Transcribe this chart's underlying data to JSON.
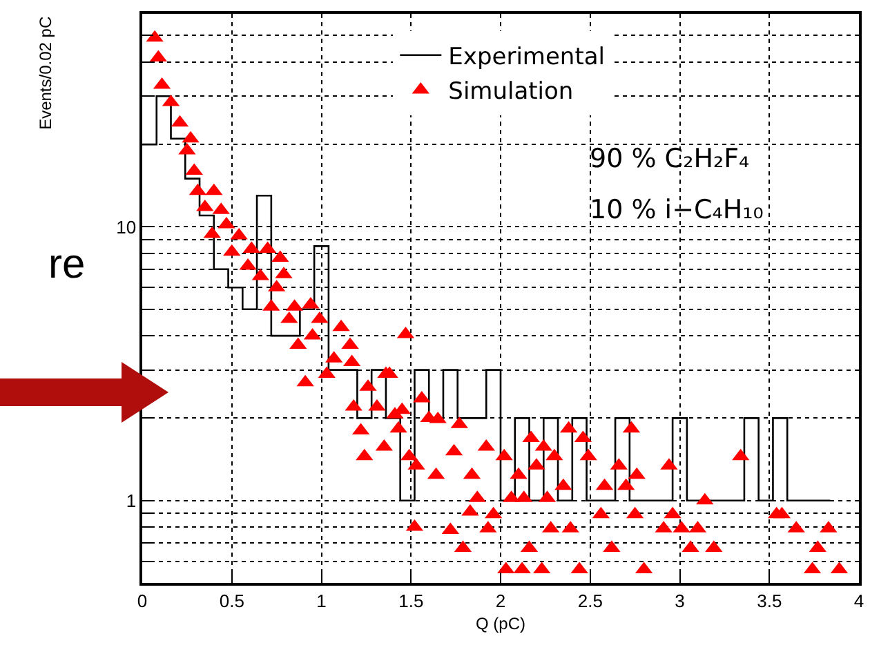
{
  "chart_data": {
    "type": "scatter",
    "xlabel": "Q (pC)",
    "ylabel": "Events/0.02 pC",
    "annotations": [
      "90 % C₂H₂F₄",
      "10 % i−C₄H₁₀",
      "re"
    ],
    "xlim": [
      0,
      4
    ],
    "xticks": [
      0,
      0.5,
      1,
      1.5,
      2,
      2.5,
      3,
      3.5,
      4
    ],
    "ylim": [
      0.5,
      60
    ],
    "yticks": [
      {
        "value": 0.6,
        "label": null
      },
      {
        "value": 0.7,
        "label": null
      },
      {
        "value": 0.8,
        "label": null
      },
      {
        "value": 0.9,
        "label": null
      },
      1,
      {
        "value": 2,
        "label": null
      },
      {
        "value": 3,
        "label": null
      },
      {
        "value": 4,
        "label": null
      },
      {
        "value": 5,
        "label": null
      },
      {
        "value": 6,
        "label": null
      },
      {
        "value": 7,
        "label": null
      },
      {
        "value": 8,
        "label": null
      },
      {
        "value": 9,
        "label": null
      },
      10,
      {
        "value": 20,
        "label": null
      },
      {
        "value": 30,
        "label": null
      },
      {
        "value": 40,
        "label": null
      },
      {
        "value": 50,
        "label": null
      }
    ],
    "log": "y",
    "grid": true,
    "legend": "top",
    "series": [
      {
        "name": "Experimental",
        "type": "step",
        "color": "#000000",
        "marker": "none",
        "x": [
          0,
          0.08,
          0.16,
          0.24,
          0.32,
          0.4,
          0.48,
          0.56,
          0.64,
          0.72,
          0.8,
          0.88,
          0.96,
          1.04,
          1.12,
          1.2,
          1.28,
          1.36,
          1.44,
          1.52,
          1.6,
          1.68,
          1.76,
          1.84,
          1.92,
          2.0,
          2.08,
          2.16,
          2.24,
          2.32,
          2.4,
          2.48,
          2.56,
          2.64,
          2.72,
          2.8,
          2.88,
          2.96,
          3.04,
          3.12,
          3.2,
          3.28,
          3.36,
          3.44,
          3.52,
          3.6,
          3.68,
          3.76,
          3.84
        ],
        "values": [
          20,
          30,
          21,
          15,
          11,
          7,
          6,
          5,
          13,
          4,
          4,
          5,
          8.5,
          3,
          3,
          2,
          3,
          2,
          1,
          3,
          2,
          3,
          2,
          2,
          3,
          1,
          2,
          1,
          2,
          1,
          2,
          1,
          1,
          2,
          1,
          1,
          1,
          2,
          1,
          1,
          1,
          1,
          2,
          1,
          2,
          1,
          1,
          1,
          1
        ]
      },
      {
        "name": "Simulation",
        "color": "#ff0000",
        "marker": "triangle",
        "x": [
          0.07,
          0.09,
          0.11,
          0.16,
          0.21,
          0.25,
          0.27,
          0.29,
          0.31,
          0.35,
          0.39,
          0.4,
          0.44,
          0.47,
          0.5,
          0.54,
          0.59,
          0.61,
          0.66,
          0.7,
          0.72,
          0.75,
          0.77,
          0.79,
          0.82,
          0.85,
          0.87,
          0.91,
          0.94,
          0.95,
          0.99,
          1.03,
          1.07,
          1.11,
          1.16,
          1.17,
          1.18,
          1.22,
          1.24,
          1.26,
          1.31,
          1.35,
          1.36,
          1.38,
          1.41,
          1.43,
          1.45,
          1.47,
          1.49,
          1.52,
          1.53,
          1.56,
          1.6,
          1.64,
          1.65,
          1.72,
          1.74,
          1.77,
          1.79,
          1.83,
          1.84,
          1.87,
          1.92,
          1.93,
          1.96,
          2.02,
          2.03,
          2.06,
          2.1,
          2.12,
          2.13,
          2.16,
          2.17,
          2.2,
          2.23,
          2.24,
          2.26,
          2.28,
          2.3,
          2.35,
          2.38,
          2.39,
          2.44,
          2.46,
          2.49,
          2.56,
          2.58,
          2.62,
          2.66,
          2.7,
          2.73,
          2.75,
          2.76,
          2.8,
          2.91,
          2.94,
          2.96,
          3.01,
          3.06,
          3.1,
          3.14,
          3.19,
          3.34,
          3.54,
          3.57,
          3.65,
          3.74,
          3.77,
          3.83,
          3.89
        ],
        "values": [
          49,
          41.5,
          33,
          28.5,
          24,
          19,
          21,
          16,
          13.5,
          11.8,
          9.4,
          13.5,
          11.5,
          10.2,
          8.1,
          9.3,
          7.2,
          8.3,
          6.6,
          8.3,
          5.1,
          6,
          7.7,
          6.7,
          4.6,
          5.1,
          3.7,
          2.7,
          5.2,
          4,
          4.6,
          2.9,
          3.3,
          4.3,
          3.7,
          3.2,
          2.2,
          1.8,
          1.45,
          2.6,
          2.2,
          1.57,
          2.9,
          2.9,
          2.06,
          1.83,
          2.14,
          4.05,
          1.45,
          0.8,
          1.34,
          2.36,
          2,
          1.24,
          1.98,
          0.78,
          1.51,
          1.9,
          0.67,
          0.91,
          1.24,
          1.02,
          1.57,
          0.79,
          0.89,
          1.45,
          0.56,
          1.02,
          1.24,
          0.56,
          1.02,
          0.67,
          1.69,
          1.34,
          0.56,
          1.57,
          1.02,
          0.79,
          1.45,
          1.13,
          1.83,
          0.79,
          0.56,
          1.69,
          1.45,
          0.89,
          1.13,
          0.67,
          1.34,
          1.13,
          1.83,
          0.89,
          1.24,
          0.56,
          0.79,
          1.34,
          0.89,
          0.79,
          0.67,
          0.79,
          1,
          0.67,
          1.45,
          0.89,
          0.89,
          0.79,
          0.56,
          0.67,
          0.79,
          0.56
        ]
      }
    ]
  }
}
